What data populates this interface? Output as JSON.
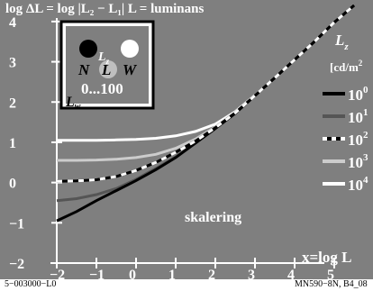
{
  "chart_data": {
    "type": "line",
    "title": "log ΔL = log |L₂ − L₁|   L = luminans",
    "annotation": "skalering",
    "xlabel": "x=log L",
    "xlim": [
      -2,
      5.5
    ],
    "ylim": [
      -2,
      4.4
    ],
    "x_ticks": [
      "−2",
      "−1",
      "0",
      "1",
      "2",
      "3",
      "4",
      "5"
    ],
    "y_ticks": [
      "−2",
      "−1",
      "0",
      "1",
      "2",
      "3",
      "4"
    ],
    "x_tick_values": [
      -2,
      -1,
      0,
      1,
      2,
      3,
      4,
      5
    ],
    "y_tick_values": [
      -2,
      -1,
      0,
      1,
      2,
      3,
      4
    ],
    "legend_title": "L",
    "legend_title_sub": "z",
    "legend_unit": "[cd/m",
    "legend_unit_sup": "2",
    "series": [
      {
        "name": "10",
        "exp": "0",
        "color": "#000000",
        "dash": false,
        "x": [
          -2,
          -1.5,
          -1,
          -0.5,
          0,
          0.5,
          1,
          1.5,
          2,
          2.5,
          3,
          3.5,
          4,
          4.5,
          5,
          5.5
        ],
        "y": [
          -0.95,
          -0.72,
          -0.45,
          -0.2,
          0.05,
          0.32,
          0.62,
          0.98,
          1.34,
          1.72,
          2.16,
          2.6,
          3.05,
          3.5,
          3.98,
          4.4
        ]
      },
      {
        "name": "10",
        "exp": "1",
        "color": "#555555",
        "dash": false,
        "x": [
          -2,
          -1.5,
          -1,
          -0.5,
          0,
          0.5,
          1,
          1.5,
          2,
          2.5,
          3,
          3.5,
          4,
          4.5,
          5,
          5.5
        ],
        "y": [
          -0.45,
          -0.4,
          -0.3,
          -0.15,
          0.08,
          0.35,
          0.64,
          0.98,
          1.34,
          1.72,
          2.16,
          2.6,
          3.05,
          3.5,
          3.98,
          4.4
        ]
      },
      {
        "name": "10",
        "exp": "2",
        "color": "#ffffff",
        "dash": true,
        "x": [
          -2,
          -1.5,
          -1,
          -0.5,
          0,
          0.5,
          1,
          1.5,
          2,
          2.5,
          3,
          3.5,
          4,
          4.5,
          5,
          5.5
        ],
        "y": [
          0.03,
          0.04,
          0.07,
          0.15,
          0.3,
          0.5,
          0.75,
          1.03,
          1.36,
          1.73,
          2.16,
          2.6,
          3.05,
          3.5,
          3.98,
          4.4
        ]
      },
      {
        "name": "10",
        "exp": "3",
        "color": "#cccccc",
        "dash": false,
        "x": [
          -2,
          -1.5,
          -1,
          -0.5,
          0,
          0.5,
          1,
          1.5,
          2,
          2.5,
          3,
          3.5,
          4,
          4.5,
          5,
          5.5
        ],
        "y": [
          0.55,
          0.55,
          0.56,
          0.58,
          0.62,
          0.7,
          0.85,
          1.08,
          1.38,
          1.74,
          2.16,
          2.6,
          3.05,
          3.5,
          3.98,
          4.4
        ]
      },
      {
        "name": "10",
        "exp": "4",
        "color": "#ffffff",
        "dash": false,
        "x": [
          -2,
          -1.5,
          -1,
          -0.5,
          0,
          0.5,
          1,
          1.5,
          2,
          2.5,
          3,
          3.5,
          4,
          4.5,
          5,
          5.5
        ],
        "y": [
          1.05,
          1.05,
          1.05,
          1.06,
          1.07,
          1.1,
          1.16,
          1.27,
          1.45,
          1.76,
          2.17,
          2.6,
          3.05,
          3.5,
          3.98,
          4.4
        ]
      }
    ]
  },
  "inset": {
    "lz": "L",
    "lz_sub": "z",
    "n": "N",
    "l": "L",
    "w": "W",
    "range": "0...100",
    "lw": "L",
    "lw_sub": "w"
  },
  "footer": {
    "left": "5−003000−L0",
    "right": "MN590−8N, B4_08"
  },
  "colors": {
    "background": "#7f7f7f",
    "page": "#ffffff"
  }
}
